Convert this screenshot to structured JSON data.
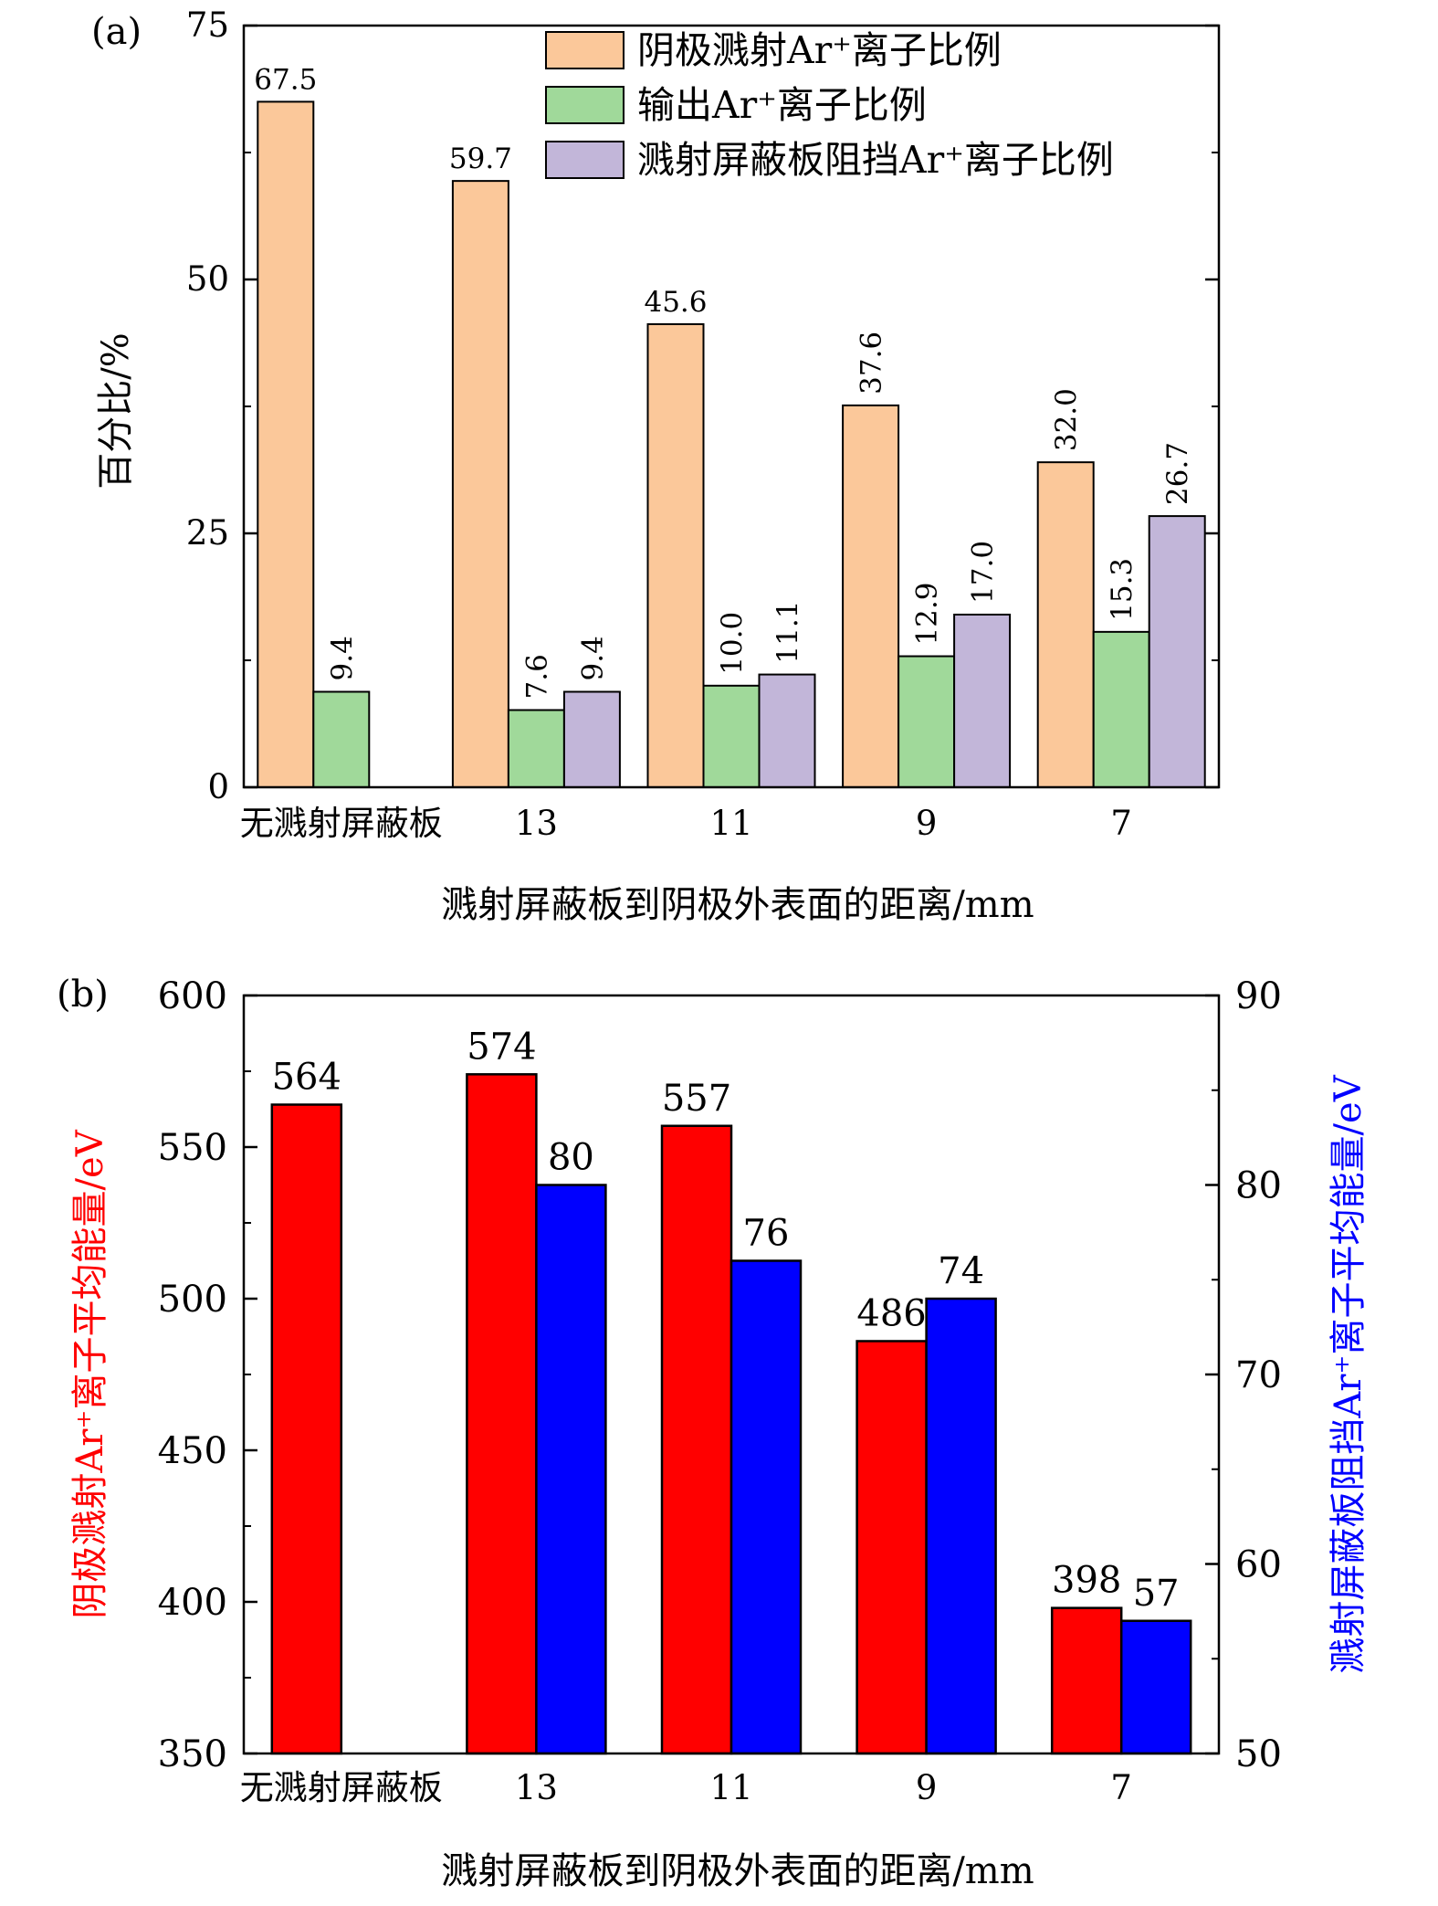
{
  "chart_data": [
    {
      "type": "bar",
      "panel_label": "(a)",
      "xlabel": "溅射屏蔽板到阴极外表面的距离/mm",
      "ylabel": "百分比/%",
      "categories": [
        "无溅射屏蔽板",
        "13",
        "11",
        "9",
        "7"
      ],
      "ylim": [
        0,
        75
      ],
      "yticks": [
        "0",
        "25",
        "50",
        "75"
      ],
      "legend_position": "top-right",
      "series": [
        {
          "name": "阴极溅射Ar⁺离子比例",
          "color": "#fbc89a",
          "values": [
            67.5,
            59.7,
            45.6,
            37.6,
            32.0
          ],
          "labels": [
            "67.5",
            "59.7",
            "45.6",
            "37.6",
            "32.0"
          ]
        },
        {
          "name": "输出Ar⁺离子比例",
          "color": "#a0d99a",
          "values": [
            9.4,
            7.6,
            10.0,
            12.9,
            15.3
          ],
          "labels": [
            "9.4",
            "7.6",
            "10.0",
            "12.9",
            "15.3"
          ]
        },
        {
          "name": "溅射屏蔽板阻挡Ar⁺离子比例",
          "color": "#c2b6d9",
          "values": [
            null,
            9.4,
            11.1,
            17.0,
            26.7
          ],
          "labels": [
            null,
            "9.4",
            "11.1",
            "17.0",
            "26.7"
          ]
        }
      ]
    },
    {
      "type": "bar",
      "panel_label": "(b)",
      "xlabel": "溅射屏蔽板到阴极外表面的距离/mm",
      "categories": [
        "无溅射屏蔽板",
        "13",
        "11",
        "9",
        "7"
      ],
      "ylabel_left": "阴极溅射Ar⁺离子平均能量/eV",
      "ylabel_right": "溅射屏蔽板阻挡Ar⁺离子平均能量/eV",
      "ylim_left": [
        350,
        600
      ],
      "ylim_right": [
        50,
        90
      ],
      "yticks_left": [
        "350",
        "400",
        "450",
        "500",
        "550",
        "600"
      ],
      "yticks_right": [
        "50",
        "60",
        "70",
        "80",
        "90"
      ],
      "series": [
        {
          "name": "阴极溅射Ar⁺离子平均能量",
          "axis": "left",
          "color": "#ff0000",
          "values": [
            564,
            574,
            557,
            486,
            398
          ],
          "labels": [
            "564",
            "574",
            "557",
            "486",
            "398"
          ]
        },
        {
          "name": "溅射屏蔽板阻挡Ar⁺离子平均能量",
          "axis": "right",
          "color": "#0000ff",
          "values": [
            null,
            80,
            76,
            74,
            57
          ],
          "labels": [
            null,
            "80",
            "76",
            "74",
            "57"
          ]
        }
      ]
    }
  ]
}
